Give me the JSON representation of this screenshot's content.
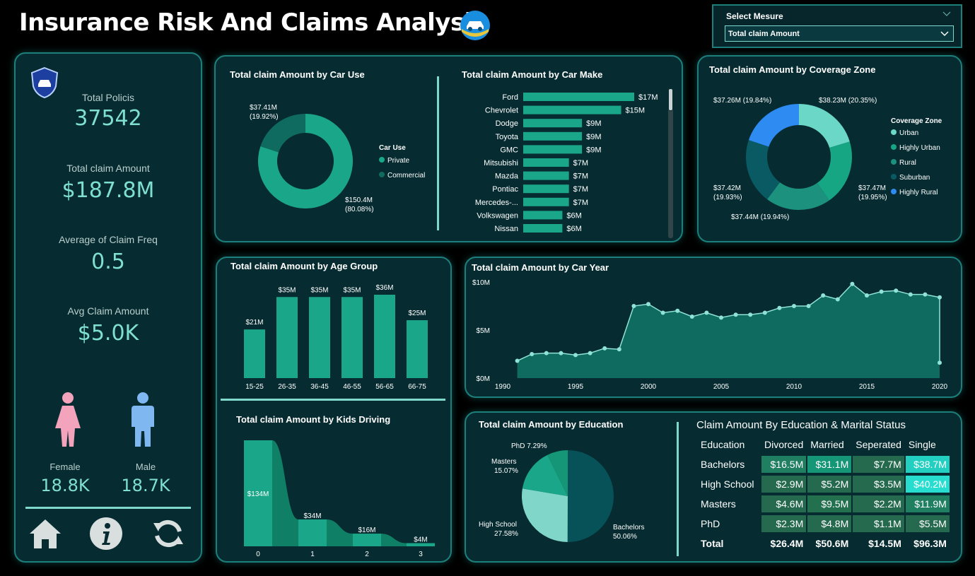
{
  "title": "Insurance Risk And Claims Analysis",
  "measure_selector": {
    "label": "Select Mesure",
    "value": "Total claim Amount"
  },
  "kpis": [
    {
      "label": "Total Policis",
      "value": "37542"
    },
    {
      "label": "Total claim Amount",
      "value": "$187.8M"
    },
    {
      "label": "Average of Claim Freq",
      "value": "0.5"
    },
    {
      "label": "Avg Claim Amount",
      "value": "$5.0K"
    }
  ],
  "gender": {
    "female_label": "Female",
    "female_value": "18.8K",
    "male_label": "Male",
    "male_value": "18.7K"
  },
  "colors": {
    "accent": "#1aa789",
    "teal_dark": "#0f6b60",
    "bg": "#062c31",
    "border": "#1d7f7b",
    "blue": "#2d8bf2",
    "female": "#f4a3bd",
    "male": "#7fb8f0"
  },
  "chart_data": [
    {
      "id": "car_use",
      "type": "pie",
      "title": "Total claim Amount by Car Use",
      "legend_title": "Car Use",
      "categories": [
        "Private",
        "Commercial"
      ],
      "values": [
        150.4,
        37.41
      ],
      "labels": [
        "$150.4M",
        "$37.41M"
      ],
      "percents": [
        "(80.08%)",
        "(19.92%)"
      ]
    },
    {
      "id": "car_make",
      "type": "bar",
      "title": "Total claim Amount by Car Make",
      "categories": [
        "Ford",
        "Chevrolet",
        "Dodge",
        "Toyota",
        "GMC",
        "Mitsubishi",
        "Mazda",
        "Pontiac",
        "Mercedes-...",
        "Volkswagen",
        "Nissan"
      ],
      "values": [
        17,
        15,
        9,
        9,
        9,
        7,
        7,
        7,
        7,
        6,
        6
      ],
      "labels": [
        "$17M",
        "$15M",
        "$9M",
        "$9M",
        "$9M",
        "$7M",
        "$7M",
        "$7M",
        "$7M",
        "$6M",
        "$6M"
      ]
    },
    {
      "id": "coverage_zone",
      "type": "pie",
      "title": "Total claim Amount by Coverage Zone",
      "legend_title": "Coverage Zone",
      "categories": [
        "Urban",
        "Highly Urban",
        "Rural",
        "Suburban",
        "Highly Rural"
      ],
      "values": [
        38.23,
        37.47,
        37.44,
        37.42,
        37.26
      ],
      "labels": [
        "$38.23M (20.35%)",
        "$37.47M",
        "$37.44M (19.94%)",
        "$37.42M",
        "$37.26M (19.84%)"
      ],
      "percents": [
        "",
        "(19.95%)",
        "",
        "(19.93%)",
        ""
      ]
    },
    {
      "id": "age_group",
      "type": "bar",
      "title": "Total claim Amount by Age Group",
      "categories": [
        "15-25",
        "26-35",
        "36-45",
        "46-55",
        "56-65",
        "66-75"
      ],
      "values": [
        21,
        35,
        35,
        35,
        36,
        25
      ],
      "labels": [
        "$21M",
        "$35M",
        "$35M",
        "$35M",
        "$36M",
        "$25M"
      ]
    },
    {
      "id": "car_year",
      "type": "area",
      "title": "Total claim Amount by Car Year",
      "x": [
        1991,
        1992,
        1993,
        1994,
        1995,
        1996,
        1997,
        1998,
        1999,
        2000,
        2001,
        2002,
        2003,
        2004,
        2005,
        2006,
        2007,
        2008,
        2009,
        2010,
        2011,
        2012,
        2013,
        2014,
        2015,
        2016,
        2017,
        2018,
        2019,
        2020
      ],
      "values": [
        1.8,
        2.5,
        2.6,
        2.6,
        2.4,
        2.6,
        3.1,
        3.0,
        7.5,
        7.7,
        6.8,
        7.0,
        6.4,
        6.8,
        6.3,
        6.6,
        6.6,
        6.8,
        7.3,
        7.5,
        7.5,
        8.6,
        8.2,
        9.8,
        8.6,
        9.0,
        9.1,
        8.7,
        8.7,
        8.4
      ],
      "end_value": 1.6,
      "ylim": [
        0,
        10
      ],
      "yticks": [
        "$0M",
        "$5M",
        "$10M"
      ],
      "xticks": [
        "1990",
        "1995",
        "2000",
        "2005",
        "2010",
        "2015",
        "2020"
      ]
    },
    {
      "id": "kids_driving",
      "type": "area",
      "title": "Total claim Amount by Kids Driving",
      "categories": [
        "0",
        "1",
        "2",
        "3"
      ],
      "values": [
        134,
        34,
        16,
        4
      ],
      "labels": [
        "$134M",
        "$34M",
        "$16M",
        "$4M"
      ]
    },
    {
      "id": "education",
      "type": "pie",
      "title": "Total claim Amount by Education",
      "categories": [
        "Bachelors",
        "High School",
        "Masters",
        "PhD"
      ],
      "values": [
        50.06,
        27.58,
        15.07,
        7.29
      ],
      "labels": [
        "Bachelors",
        "High School",
        "Masters",
        "PhD 7.29%"
      ],
      "percents": [
        "50.06%",
        "27.58%",
        "15.07%",
        ""
      ]
    },
    {
      "id": "edu_marital",
      "type": "table",
      "title": "Claim Amount By Education & Marital Status",
      "columns": [
        "Education",
        "Divorced",
        "Married",
        "Seperated",
        "Single"
      ],
      "rows": [
        [
          "Bachelors",
          "$16.5M",
          "$31.1M",
          "$7.7M",
          "$38.7M"
        ],
        [
          "High School",
          "$2.9M",
          "$5.2M",
          "$3.5M",
          "$40.2M"
        ],
        [
          "Masters",
          "$4.6M",
          "$9.5M",
          "$2.2M",
          "$11.9M"
        ],
        [
          "PhD",
          "$2.3M",
          "$4.8M",
          "$1.1M",
          "$5.5M"
        ]
      ],
      "total": [
        "Total",
        "$26.4M",
        "$50.6M",
        "$14.5M",
        "$96.3M"
      ]
    }
  ]
}
